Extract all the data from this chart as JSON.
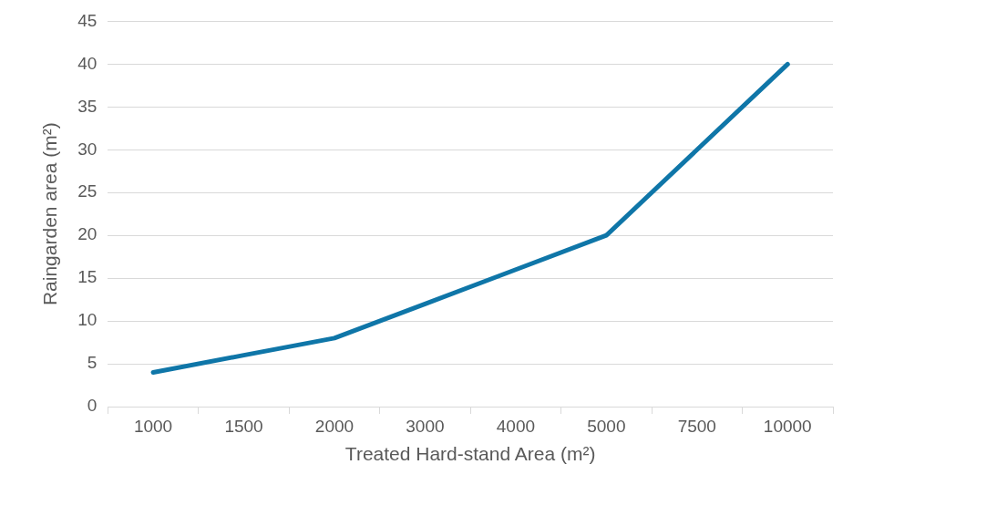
{
  "chart_data": {
    "type": "line",
    "xlabel": "Treated Hard-stand Area (m²)",
    "ylabel": "Raingarden area (m²)",
    "categories": [
      "1000",
      "1500",
      "2000",
      "3000",
      "4000",
      "5000",
      "7500",
      "10000"
    ],
    "values": [
      4,
      6,
      8,
      12,
      16,
      20,
      30,
      40
    ],
    "color": "#0f76a8",
    "ylim": [
      0,
      45
    ],
    "yticks": [
      0,
      5,
      10,
      15,
      20,
      25,
      30,
      35,
      40,
      45
    ],
    "grid": "y",
    "marker": "none",
    "line_style": "solid"
  }
}
